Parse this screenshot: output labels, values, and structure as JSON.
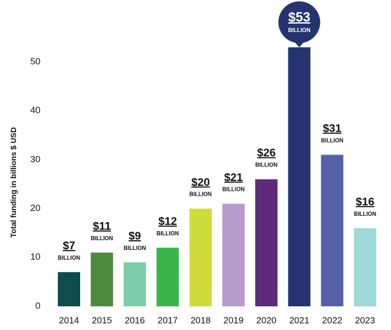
{
  "chart_data": {
    "type": "bar",
    "y_axis_label": "Total funding in billions $ USD",
    "categories": [
      "2014",
      "2015",
      "2016",
      "2017",
      "2018",
      "2019",
      "2020",
      "2021",
      "2022",
      "2023"
    ],
    "values": [
      7,
      11,
      9,
      12,
      20,
      21,
      26,
      53,
      31,
      16
    ],
    "value_labels": [
      "$7",
      "$11",
      "$9",
      "$12",
      "$20",
      "$21",
      "$26",
      "$53",
      "$31",
      "$16"
    ],
    "value_unit": "BILLION",
    "colors": [
      "#0f4c4c",
      "#4e8a3e",
      "#7ecba8",
      "#3bb54a",
      "#cfdc3a",
      "#b59ccc",
      "#5e2a7a",
      "#253470",
      "#5560a9",
      "#9ed8d8"
    ],
    "ylim": [
      0,
      55
    ],
    "yticks": [
      0,
      10,
      20,
      30,
      40,
      50
    ],
    "grid": false
  }
}
